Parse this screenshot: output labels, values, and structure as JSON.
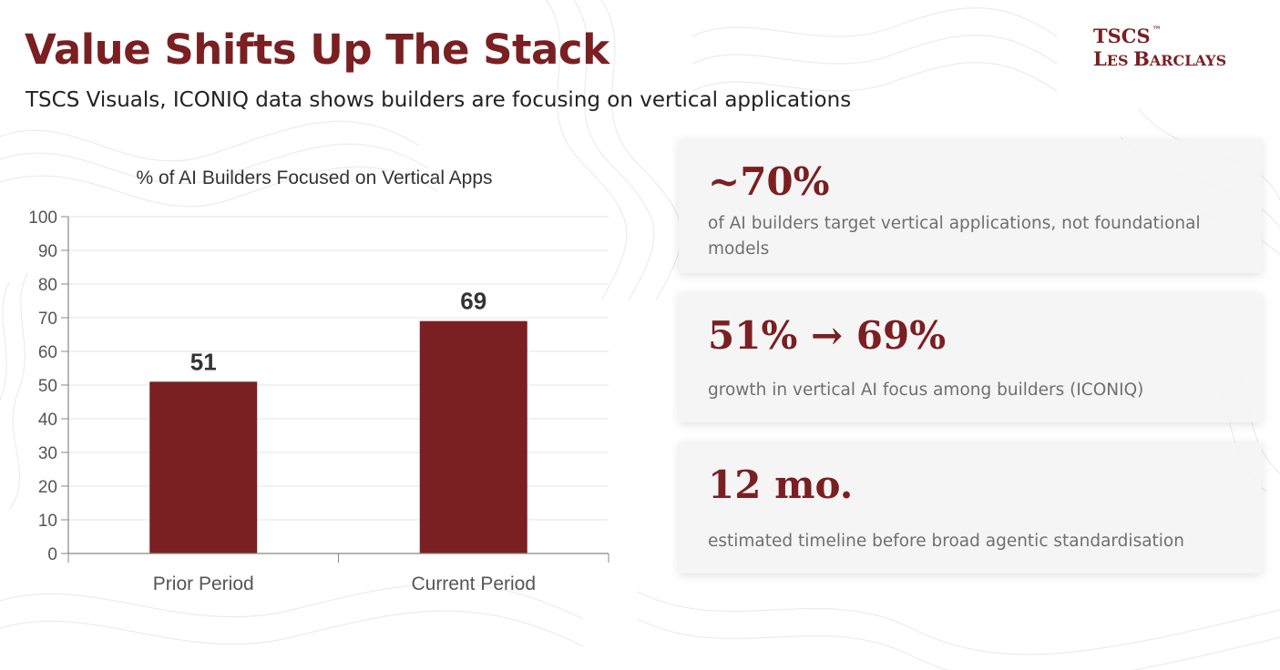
{
  "header": {
    "title": "Value Shifts Up The Stack",
    "subtitle": "TSCS Visuals, ICONIQ data shows builders are focusing on vertical applications"
  },
  "logo": {
    "line1": "TSCS",
    "tm": "™",
    "line2_a": "L",
    "line2_b": "ES ",
    "line2_c": "B",
    "line2_d": "ARCLAYS"
  },
  "stats": [
    {
      "value": "~70%",
      "description": "of AI builders target vertical applications, not foundational models"
    },
    {
      "value": "51% → 69%",
      "description": "growth in vertical AI focus among builders (ICONIQ)"
    },
    {
      "value": "12 mo.",
      "description": "estimated timeline before broad agentic standardisation"
    }
  ],
  "colors": {
    "accent": "#7a1f22",
    "bar": "#7a1f22"
  },
  "chart_data": {
    "type": "bar",
    "title": "% of AI Builders Focused on Vertical Apps",
    "categories": [
      "Prior Period",
      "Current Period"
    ],
    "values": [
      51,
      69
    ],
    "data_labels": [
      "51",
      "69"
    ],
    "ylim": [
      0,
      100
    ],
    "yticks": [
      0,
      10,
      20,
      30,
      40,
      50,
      60,
      70,
      80,
      90,
      100
    ],
    "xlabel": "",
    "ylabel": "",
    "grid": true,
    "legend": "none"
  }
}
